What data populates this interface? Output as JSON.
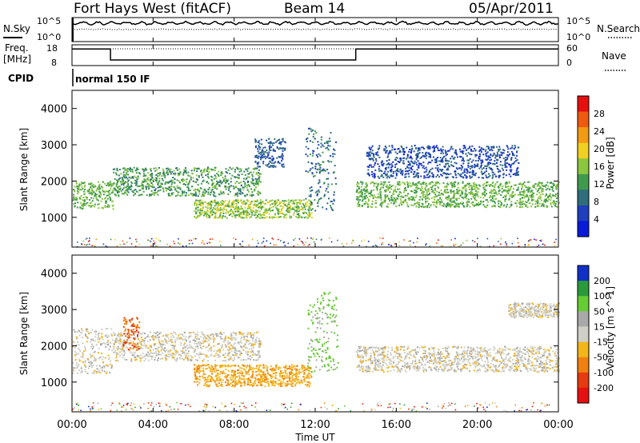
{
  "header": {
    "title": "Fort Hays West (fitACF)",
    "beam": "Beam 14",
    "date": "05/Apr/2011"
  },
  "noise_panel": {
    "left_label": "N.Sky",
    "right_label": "N.Search",
    "left_ticks": [
      "10^5",
      "10^0"
    ],
    "right_ticks": [
      "10^5",
      "10^0"
    ]
  },
  "freq_panel": {
    "left_label_1": "Freq.",
    "left_label_2": "[MHz]",
    "left_ticks": [
      "18",
      "8"
    ],
    "right_label": "Nave",
    "right_ticks": [
      "60",
      "0"
    ],
    "freq_steps": [
      {
        "start_hour": 0.0,
        "end_hour": 1.9,
        "value": 16.0
      },
      {
        "start_hour": 1.9,
        "end_hour": 14.0,
        "value": 10.7
      },
      {
        "start_hour": 14.0,
        "end_hour": 24.0,
        "value": 16.0
      }
    ]
  },
  "cpid": {
    "label": "CPID",
    "text": "normal 150 IF"
  },
  "x_axis": {
    "label": "Time UT",
    "range_hours": [
      0,
      24
    ],
    "ticks": [
      "00:00",
      "04:00",
      "08:00",
      "12:00",
      "16:00",
      "20:00",
      "00:00"
    ]
  },
  "power_panel": {
    "ylabel": "Slant Range [km]",
    "yticks": [
      "1000",
      "2000",
      "3000",
      "4000"
    ],
    "colorbar_label": "Power [dB]",
    "colorbar_ticks": [
      "4",
      "8",
      "12",
      "16",
      "20",
      "24",
      "28"
    ],
    "colors": [
      "#0a1ad9",
      "#1f3fbf",
      "#2f6e7a",
      "#3f9a4e",
      "#8cc63e",
      "#f0d020",
      "#f39a14",
      "#ee5a10",
      "#e61010"
    ]
  },
  "velocity_panel": {
    "ylabel": "Slant Range [km]",
    "yticks": [
      "1000",
      "2000",
      "3000",
      "4000"
    ],
    "colorbar_label": "Velocity [m s^-1]",
    "colorbar_ticks": [
      "200",
      "100",
      "50",
      "15",
      "-15",
      "-50",
      "-100",
      "-200"
    ],
    "colors": [
      "#1030c8",
      "#2a9a3a",
      "#66cc33",
      "#a9a9a9",
      "#cfcfc8",
      "#f2b51a",
      "#f08010",
      "#e63a10",
      "#e61010"
    ]
  },
  "chart_data": {
    "type": "heatmap",
    "x_unit": "hours UT",
    "y_unit": "km",
    "xlim": [
      0,
      24
    ],
    "ylim": [
      180,
      4500
    ],
    "power_features": [
      {
        "t0": 0.0,
        "t1": 2.0,
        "r0": 1250,
        "r1": 2000,
        "value_db": 14
      },
      {
        "t0": 2.0,
        "t1": 9.3,
        "r0": 1600,
        "r1": 2400,
        "value_db": 12
      },
      {
        "t0": 6.0,
        "t1": 11.8,
        "r0": 1000,
        "r1": 1500,
        "value_db": 16
      },
      {
        "t0": 9.0,
        "t1": 10.5,
        "r0": 2400,
        "r1": 3200,
        "value_db": 6
      },
      {
        "t0": 11.5,
        "t1": 13.0,
        "r0": 1200,
        "r1": 3500,
        "value_db": 8
      },
      {
        "t0": 14.0,
        "t1": 24.0,
        "r0": 1300,
        "r1": 2000,
        "value_db": 14
      },
      {
        "t0": 14.5,
        "t1": 22.0,
        "r0": 2100,
        "r1": 3000,
        "value_db": 5
      }
    ],
    "velocity_features": [
      {
        "t0": 0.0,
        "t1": 2.0,
        "r0": 1250,
        "r1": 2500,
        "value_ms": 0
      },
      {
        "t0": 2.0,
        "t1": 9.3,
        "r0": 1600,
        "r1": 2400,
        "value_ms": 0
      },
      {
        "t0": 2.5,
        "t1": 3.3,
        "r0": 1900,
        "r1": 2800,
        "value_ms": -100
      },
      {
        "t0": 6.0,
        "t1": 11.8,
        "r0": 900,
        "r1": 1500,
        "value_ms": -40
      },
      {
        "t0": 11.6,
        "t1": 13.1,
        "r0": 1300,
        "r1": 3500,
        "value_ms": 60
      },
      {
        "t0": 14.0,
        "t1": 24.0,
        "r0": 1300,
        "r1": 2000,
        "value_ms": 0
      },
      {
        "t0": 21.5,
        "t1": 24.0,
        "r0": 2800,
        "r1": 3200,
        "value_ms": 0
      }
    ]
  }
}
